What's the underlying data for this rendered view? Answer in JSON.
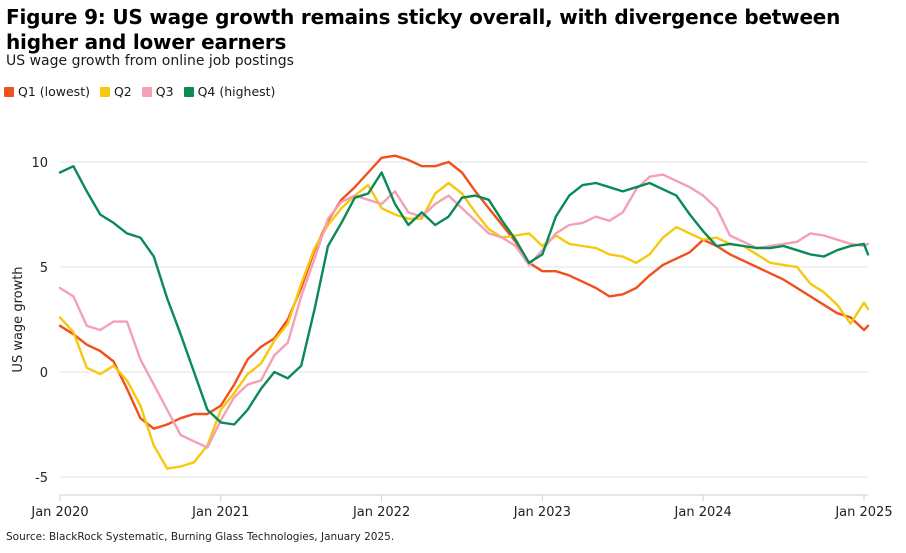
{
  "title": "Figure 9: US wage growth remains sticky overall, with divergence between higher and lower earners",
  "subtitle": "US wage growth from online job postings",
  "source": "Source: BlackRock Systematic, Burning Glass Technologies, January 2025.",
  "chart_data": {
    "type": "line",
    "title": "Figure 9: US wage growth remains sticky overall, with divergence between higher and lower earners",
    "subtitle": "US wage growth from online job postings",
    "xlabel": "",
    "ylabel": "US wage growth",
    "x_ticks": [
      "Jan 2020",
      "Jan 2021",
      "Jan 2022",
      "Jan 2023",
      "Jan 2024",
      "Jan 2025"
    ],
    "y_ticks": [
      "10",
      "5",
      "0",
      "-5"
    ],
    "ylim": [
      -5,
      10
    ],
    "grid": "horizontal",
    "legend_position": "top-left",
    "x_unit": "months since Jan 2020",
    "series": [
      {
        "name": "Q1 (lowest)",
        "color": "#f0501e",
        "points": [
          [
            0,
            2.2
          ],
          [
            1,
            1.8
          ],
          [
            2,
            1.3
          ],
          [
            3,
            1.0
          ],
          [
            4,
            0.5
          ],
          [
            5,
            -0.8
          ],
          [
            6,
            -2.2
          ],
          [
            7,
            -2.7
          ],
          [
            8,
            -2.5
          ],
          [
            9,
            -2.2
          ],
          [
            10,
            -2.0
          ],
          [
            11,
            -2.0
          ],
          [
            12,
            -1.6
          ],
          [
            13,
            -0.6
          ],
          [
            14,
            0.6
          ],
          [
            15,
            1.2
          ],
          [
            16,
            1.6
          ],
          [
            17,
            2.5
          ],
          [
            18,
            4.0
          ],
          [
            19,
            5.8
          ],
          [
            20,
            7.2
          ],
          [
            21,
            8.2
          ],
          [
            22,
            8.8
          ],
          [
            23,
            9.5
          ],
          [
            24,
            10.2
          ],
          [
            25,
            10.3
          ],
          [
            26,
            10.1
          ],
          [
            27,
            9.8
          ],
          [
            28,
            9.8
          ],
          [
            29,
            10.0
          ],
          [
            30,
            9.5
          ],
          [
            31,
            8.6
          ],
          [
            32,
            7.8
          ],
          [
            33,
            7.0
          ],
          [
            34,
            6.2
          ],
          [
            35,
            5.2
          ],
          [
            36,
            4.8
          ],
          [
            37,
            4.8
          ],
          [
            38,
            4.6
          ],
          [
            39,
            4.3
          ],
          [
            40,
            4.0
          ],
          [
            41,
            3.6
          ],
          [
            42,
            3.7
          ],
          [
            43,
            4.0
          ],
          [
            44,
            4.6
          ],
          [
            45,
            5.1
          ],
          [
            46,
            5.4
          ],
          [
            47,
            5.7
          ],
          [
            48,
            6.3
          ],
          [
            49,
            6.0
          ],
          [
            50,
            5.6
          ],
          [
            51,
            5.3
          ],
          [
            52,
            5.0
          ],
          [
            53,
            4.7
          ],
          [
            54,
            4.4
          ],
          [
            55,
            4.0
          ],
          [
            56,
            3.6
          ],
          [
            57,
            3.2
          ],
          [
            58,
            2.8
          ],
          [
            59,
            2.6
          ],
          [
            60,
            2.0
          ],
          [
            60.3,
            2.2
          ]
        ]
      },
      {
        "name": "Q2",
        "color": "#f6c90e",
        "points": [
          [
            0,
            2.6
          ],
          [
            1,
            1.9
          ],
          [
            2,
            0.2
          ],
          [
            3,
            -0.1
          ],
          [
            4,
            0.3
          ],
          [
            5,
            -0.4
          ],
          [
            6,
            -1.6
          ],
          [
            7,
            -3.5
          ],
          [
            8,
            -4.6
          ],
          [
            9,
            -4.5
          ],
          [
            10,
            -4.3
          ],
          [
            11,
            -3.5
          ],
          [
            12,
            -1.8
          ],
          [
            13,
            -1.0
          ],
          [
            14,
            -0.1
          ],
          [
            15,
            0.4
          ],
          [
            16,
            1.5
          ],
          [
            17,
            2.3
          ],
          [
            18,
            4.2
          ],
          [
            19,
            5.9
          ],
          [
            20,
            7.0
          ],
          [
            21,
            7.8
          ],
          [
            22,
            8.4
          ],
          [
            23,
            8.9
          ],
          [
            24,
            7.8
          ],
          [
            25,
            7.5
          ],
          [
            26,
            7.3
          ],
          [
            27,
            7.3
          ],
          [
            28,
            8.5
          ],
          [
            29,
            9.0
          ],
          [
            30,
            8.5
          ],
          [
            31,
            7.6
          ],
          [
            32,
            6.8
          ],
          [
            33,
            6.4
          ],
          [
            34,
            6.5
          ],
          [
            35,
            6.6
          ],
          [
            36,
            6.0
          ],
          [
            37,
            6.5
          ],
          [
            38,
            6.1
          ],
          [
            39,
            6.0
          ],
          [
            40,
            5.9
          ],
          [
            41,
            5.6
          ],
          [
            42,
            5.5
          ],
          [
            43,
            5.2
          ],
          [
            44,
            5.6
          ],
          [
            45,
            6.4
          ],
          [
            46,
            6.9
          ],
          [
            47,
            6.6
          ],
          [
            48,
            6.3
          ],
          [
            49,
            6.4
          ],
          [
            50,
            6.1
          ],
          [
            51,
            6.0
          ],
          [
            52,
            5.6
          ],
          [
            53,
            5.2
          ],
          [
            54,
            5.1
          ],
          [
            55,
            5.0
          ],
          [
            56,
            4.2
          ],
          [
            57,
            3.8
          ],
          [
            58,
            3.2
          ],
          [
            59,
            2.3
          ],
          [
            60,
            3.3
          ],
          [
            60.3,
            3.0
          ]
        ]
      },
      {
        "name": "Q3",
        "color": "#f4a0b5",
        "points": [
          [
            0,
            4.0
          ],
          [
            1,
            3.6
          ],
          [
            2,
            2.2
          ],
          [
            3,
            2.0
          ],
          [
            4,
            2.4
          ],
          [
            5,
            2.4
          ],
          [
            6,
            0.6
          ],
          [
            7,
            -0.6
          ],
          [
            8,
            -1.8
          ],
          [
            9,
            -3.0
          ],
          [
            10,
            -3.3
          ],
          [
            11,
            -3.6
          ],
          [
            12,
            -2.3
          ],
          [
            13,
            -1.2
          ],
          [
            14,
            -0.6
          ],
          [
            15,
            -0.4
          ],
          [
            16,
            0.8
          ],
          [
            17,
            1.4
          ],
          [
            18,
            3.6
          ],
          [
            19,
            5.4
          ],
          [
            20,
            7.3
          ],
          [
            21,
            8.1
          ],
          [
            22,
            8.4
          ],
          [
            23,
            8.2
          ],
          [
            24,
            8.0
          ],
          [
            25,
            8.6
          ],
          [
            26,
            7.6
          ],
          [
            27,
            7.4
          ],
          [
            28,
            8.0
          ],
          [
            29,
            8.4
          ],
          [
            30,
            7.8
          ],
          [
            31,
            7.2
          ],
          [
            32,
            6.6
          ],
          [
            33,
            6.4
          ],
          [
            34,
            6.0
          ],
          [
            35,
            5.1
          ],
          [
            36,
            5.8
          ],
          [
            37,
            6.6
          ],
          [
            38,
            7.0
          ],
          [
            39,
            7.1
          ],
          [
            40,
            7.4
          ],
          [
            41,
            7.2
          ],
          [
            42,
            7.6
          ],
          [
            43,
            8.7
          ],
          [
            44,
            9.3
          ],
          [
            45,
            9.4
          ],
          [
            46,
            9.1
          ],
          [
            47,
            8.8
          ],
          [
            48,
            8.4
          ],
          [
            49,
            7.8
          ],
          [
            50,
            6.5
          ],
          [
            51,
            6.2
          ],
          [
            52,
            5.9
          ],
          [
            53,
            6.0
          ],
          [
            54,
            6.1
          ],
          [
            55,
            6.2
          ],
          [
            56,
            6.6
          ],
          [
            57,
            6.5
          ],
          [
            58,
            6.3
          ],
          [
            59,
            6.1
          ],
          [
            60,
            6.0
          ],
          [
            60.3,
            6.1
          ]
        ]
      },
      {
        "name": "Q4 (highest)",
        "color": "#0a8a55",
        "points": [
          [
            0,
            9.5
          ],
          [
            1,
            9.8
          ],
          [
            2,
            8.6
          ],
          [
            3,
            7.5
          ],
          [
            4,
            7.1
          ],
          [
            5,
            6.6
          ],
          [
            6,
            6.4
          ],
          [
            7,
            5.5
          ],
          [
            8,
            3.5
          ],
          [
            9,
            1.8
          ],
          [
            10,
            0.0
          ],
          [
            11,
            -1.8
          ],
          [
            12,
            -2.4
          ],
          [
            13,
            -2.5
          ],
          [
            14,
            -1.8
          ],
          [
            15,
            -0.8
          ],
          [
            16,
            0.0
          ],
          [
            17,
            -0.3
          ],
          [
            18,
            0.3
          ],
          [
            19,
            3.0
          ],
          [
            20,
            6.0
          ],
          [
            21,
            7.1
          ],
          [
            22,
            8.3
          ],
          [
            23,
            8.5
          ],
          [
            24,
            9.5
          ],
          [
            25,
            8.0
          ],
          [
            26,
            7.0
          ],
          [
            27,
            7.6
          ],
          [
            28,
            7.0
          ],
          [
            29,
            7.4
          ],
          [
            30,
            8.3
          ],
          [
            31,
            8.4
          ],
          [
            32,
            8.2
          ],
          [
            33,
            7.2
          ],
          [
            34,
            6.3
          ],
          [
            35,
            5.2
          ],
          [
            36,
            5.6
          ],
          [
            37,
            7.4
          ],
          [
            38,
            8.4
          ],
          [
            39,
            8.9
          ],
          [
            40,
            9.0
          ],
          [
            41,
            8.8
          ],
          [
            42,
            8.6
          ],
          [
            43,
            8.8
          ],
          [
            44,
            9.0
          ],
          [
            45,
            8.7
          ],
          [
            46,
            8.4
          ],
          [
            47,
            7.5
          ],
          [
            48,
            6.7
          ],
          [
            49,
            6.0
          ],
          [
            50,
            6.1
          ],
          [
            51,
            6.0
          ],
          [
            52,
            5.9
          ],
          [
            53,
            5.9
          ],
          [
            54,
            6.0
          ],
          [
            55,
            5.8
          ],
          [
            56,
            5.6
          ],
          [
            57,
            5.5
          ],
          [
            58,
            5.8
          ],
          [
            59,
            6.0
          ],
          [
            60,
            6.1
          ],
          [
            60.3,
            5.6
          ]
        ]
      }
    ]
  }
}
